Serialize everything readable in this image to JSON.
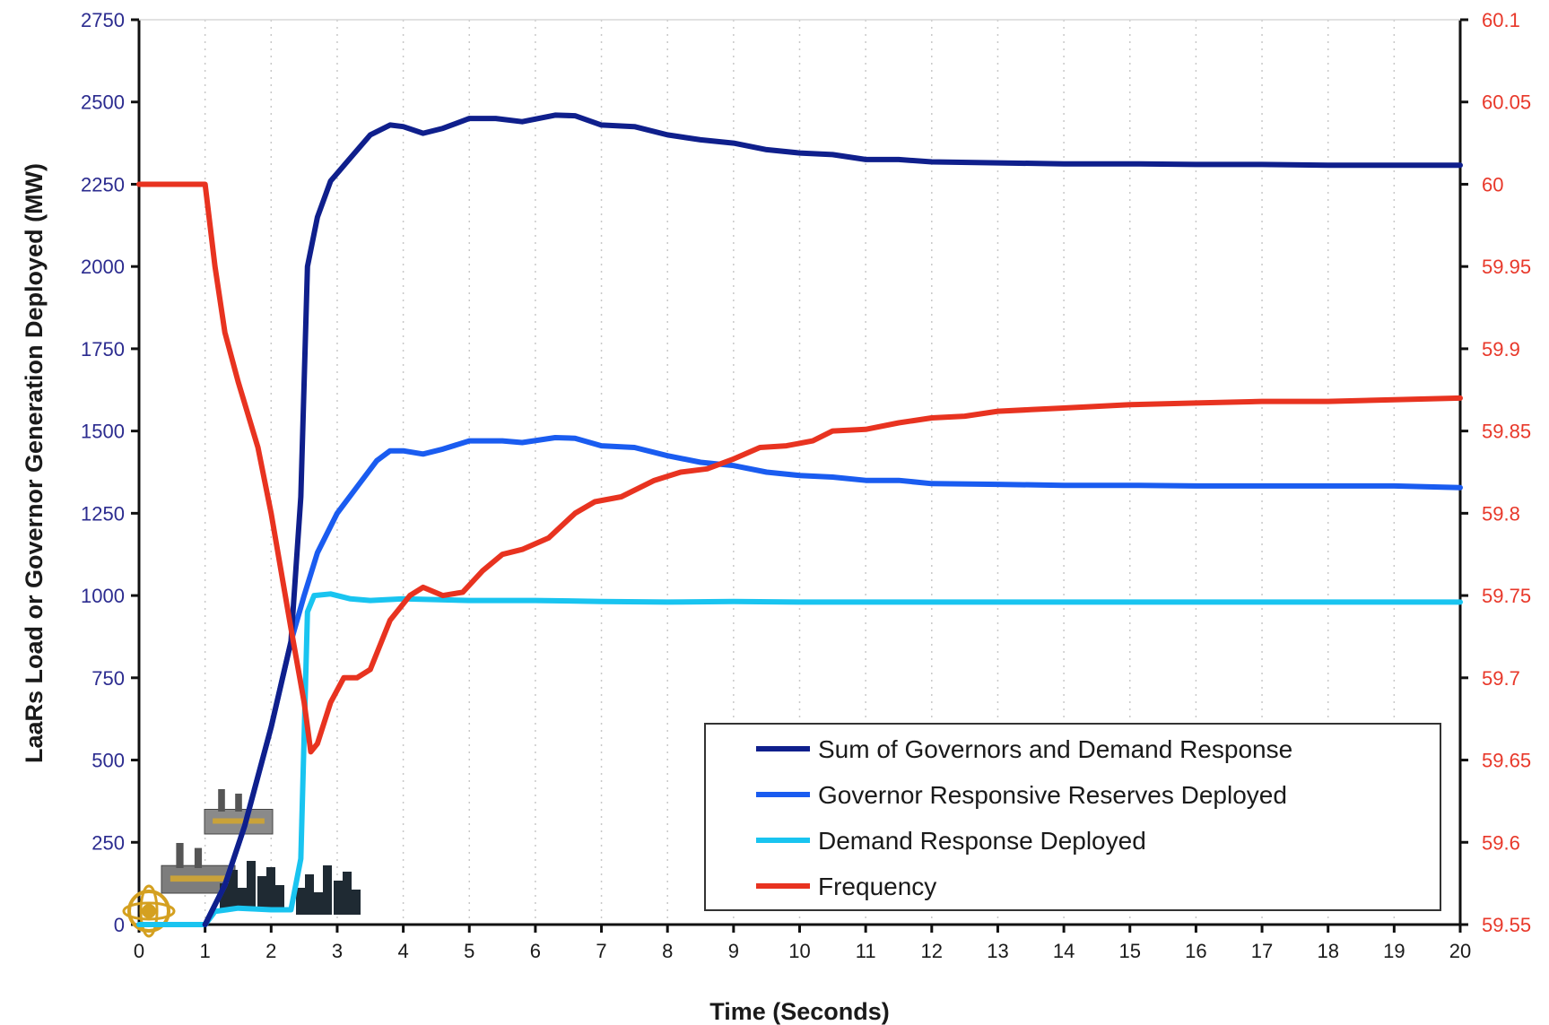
{
  "chart_data": {
    "type": "line",
    "title": "",
    "xlabel": "Time (Seconds)",
    "ylabel": "LaaRs Load or Governor Generation Deployed (MW)",
    "y2label": "",
    "xlim": [
      0,
      20
    ],
    "ylim": [
      0,
      2750
    ],
    "y2lim": [
      59.55,
      60.1
    ],
    "x_ticks": [
      "0",
      "1",
      "2",
      "3",
      "4",
      "5",
      "6",
      "7",
      "8",
      "9",
      "10",
      "11",
      "12",
      "13",
      "14",
      "15",
      "16",
      "17",
      "18",
      "19",
      "20"
    ],
    "y_ticks": [
      "0",
      "250",
      "500",
      "750",
      "1000",
      "1250",
      "1500",
      "1750",
      "2000",
      "2250",
      "2500",
      "2750"
    ],
    "y2_ticks": [
      "59.55",
      "59.6",
      "59.65",
      "59.7",
      "59.75",
      "59.8",
      "59.85",
      "59.9",
      "59.95",
      "60",
      "60.05",
      "60.1"
    ],
    "grid": "vertical dotted",
    "legend_position": "bottom-right",
    "series": [
      {
        "name": "Sum of Governors and Demand Response",
        "axis": "left",
        "color": "#0f1f8c",
        "points": [
          [
            1,
            0
          ],
          [
            1.3,
            120
          ],
          [
            1.6,
            300
          ],
          [
            2.0,
            600
          ],
          [
            2.3,
            860
          ],
          [
            2.45,
            1300
          ],
          [
            2.55,
            2000
          ],
          [
            2.7,
            2150
          ],
          [
            2.9,
            2260
          ],
          [
            3.2,
            2330
          ],
          [
            3.5,
            2400
          ],
          [
            3.8,
            2430
          ],
          [
            4.0,
            2425
          ],
          [
            4.3,
            2405
          ],
          [
            4.6,
            2420
          ],
          [
            5.0,
            2450
          ],
          [
            5.4,
            2450
          ],
          [
            5.8,
            2440
          ],
          [
            6.3,
            2460
          ],
          [
            6.6,
            2458
          ],
          [
            7.0,
            2430
          ],
          [
            7.5,
            2425
          ],
          [
            8.0,
            2400
          ],
          [
            8.5,
            2385
          ],
          [
            9.0,
            2375
          ],
          [
            9.5,
            2355
          ],
          [
            10,
            2345
          ],
          [
            10.5,
            2340
          ],
          [
            11,
            2325
          ],
          [
            11.5,
            2325
          ],
          [
            12,
            2318
          ],
          [
            13,
            2315
          ],
          [
            14,
            2312
          ],
          [
            15,
            2312
          ],
          [
            16,
            2310
          ],
          [
            17,
            2310
          ],
          [
            18,
            2308
          ],
          [
            19,
            2308
          ],
          [
            20,
            2308
          ]
        ]
      },
      {
        "name": "Governor Responsive Reserves Deployed",
        "axis": "left",
        "color": "#1a5cf0",
        "points": [
          [
            1,
            0
          ],
          [
            1.3,
            120
          ],
          [
            1.6,
            300
          ],
          [
            2.0,
            600
          ],
          [
            2.3,
            860
          ],
          [
            2.5,
            1000
          ],
          [
            2.7,
            1130
          ],
          [
            3.0,
            1250
          ],
          [
            3.3,
            1330
          ],
          [
            3.6,
            1410
          ],
          [
            3.8,
            1440
          ],
          [
            4.0,
            1440
          ],
          [
            4.3,
            1430
          ],
          [
            4.6,
            1445
          ],
          [
            5.0,
            1470
          ],
          [
            5.5,
            1470
          ],
          [
            5.8,
            1465
          ],
          [
            6.3,
            1480
          ],
          [
            6.6,
            1478
          ],
          [
            7.0,
            1455
          ],
          [
            7.5,
            1450
          ],
          [
            8.0,
            1425
          ],
          [
            8.5,
            1405
          ],
          [
            9.0,
            1395
          ],
          [
            9.5,
            1375
          ],
          [
            10,
            1365
          ],
          [
            10.5,
            1360
          ],
          [
            11,
            1350
          ],
          [
            11.5,
            1350
          ],
          [
            12,
            1340
          ],
          [
            13,
            1338
          ],
          [
            14,
            1335
          ],
          [
            15,
            1335
          ],
          [
            16,
            1333
          ],
          [
            17,
            1333
          ],
          [
            18,
            1333
          ],
          [
            19,
            1333
          ],
          [
            20,
            1328
          ]
        ]
      },
      {
        "name": "Demand Response Deployed",
        "axis": "left",
        "color": "#19c4f0",
        "points": [
          [
            0,
            0
          ],
          [
            1,
            0
          ],
          [
            1.15,
            40
          ],
          [
            1.5,
            50
          ],
          [
            2.0,
            45
          ],
          [
            2.3,
            45
          ],
          [
            2.45,
            200
          ],
          [
            2.55,
            950
          ],
          [
            2.65,
            1000
          ],
          [
            2.9,
            1005
          ],
          [
            3.2,
            990
          ],
          [
            3.5,
            985
          ],
          [
            4.0,
            990
          ],
          [
            5,
            985
          ],
          [
            6,
            985
          ],
          [
            7,
            982
          ],
          [
            8,
            980
          ],
          [
            9,
            982
          ],
          [
            10,
            980
          ],
          [
            11,
            980
          ],
          [
            12,
            980
          ],
          [
            13,
            980
          ],
          [
            14,
            980
          ],
          [
            15,
            980
          ],
          [
            16,
            980
          ],
          [
            17,
            980
          ],
          [
            18,
            980
          ],
          [
            19,
            980
          ],
          [
            20,
            980
          ]
        ]
      },
      {
        "name": "Frequency",
        "axis": "right",
        "color": "#e83320",
        "points": [
          [
            0,
            60.0
          ],
          [
            1.0,
            60.0
          ],
          [
            1.15,
            59.95
          ],
          [
            1.3,
            59.91
          ],
          [
            1.5,
            59.88
          ],
          [
            1.8,
            59.84
          ],
          [
            2.0,
            59.8
          ],
          [
            2.3,
            59.73
          ],
          [
            2.5,
            59.685
          ],
          [
            2.6,
            59.655
          ],
          [
            2.7,
            59.66
          ],
          [
            2.9,
            59.685
          ],
          [
            3.1,
            59.7
          ],
          [
            3.3,
            59.7
          ],
          [
            3.5,
            59.705
          ],
          [
            3.8,
            59.735
          ],
          [
            4.1,
            59.75
          ],
          [
            4.3,
            59.755
          ],
          [
            4.6,
            59.75
          ],
          [
            4.9,
            59.752
          ],
          [
            5.2,
            59.765
          ],
          [
            5.5,
            59.775
          ],
          [
            5.8,
            59.778
          ],
          [
            6.2,
            59.785
          ],
          [
            6.6,
            59.8
          ],
          [
            6.9,
            59.807
          ],
          [
            7.3,
            59.81
          ],
          [
            7.8,
            59.82
          ],
          [
            8.2,
            59.825
          ],
          [
            8.6,
            59.827
          ],
          [
            9.0,
            59.833
          ],
          [
            9.4,
            59.84
          ],
          [
            9.8,
            59.841
          ],
          [
            10.2,
            59.844
          ],
          [
            10.5,
            59.85
          ],
          [
            11.0,
            59.851
          ],
          [
            11.5,
            59.855
          ],
          [
            12.0,
            59.858
          ],
          [
            12.5,
            59.859
          ],
          [
            13.0,
            59.862
          ],
          [
            13.5,
            59.863
          ],
          [
            14.0,
            59.864
          ],
          [
            15,
            59.866
          ],
          [
            16,
            59.867
          ],
          [
            17,
            59.868
          ],
          [
            18,
            59.868
          ],
          [
            19,
            59.869
          ],
          [
            20,
            59.87
          ]
        ]
      }
    ]
  }
}
